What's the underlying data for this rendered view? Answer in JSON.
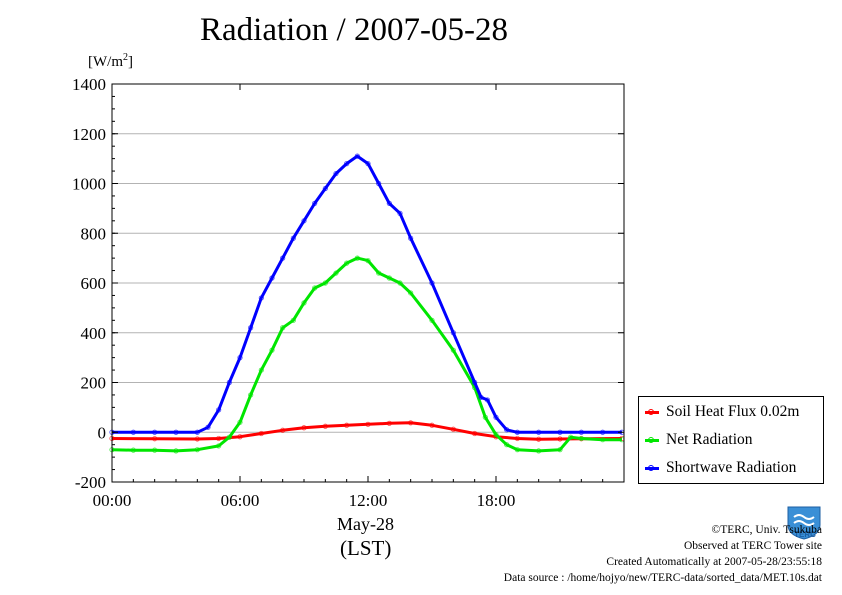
{
  "title": "Radiation / 2007-05-28",
  "unit_prefix": "[W/m",
  "unit_exp": "2",
  "unit_suffix": "]",
  "xlabel_date": "May-28",
  "xlabel_tz": "(LST)",
  "credits": [
    "©TERC, Univ. Tsukuba",
    "Observed at TERC Tower site",
    "Created Automatically at 2007-05-28/23:55:18",
    "Data source : /home/hojyo/new/TERC-data/sorted_data/MET.10s.dat"
  ],
  "logo_text": "TERC",
  "colors": {
    "soil": "#ff0000",
    "net": "#00e600",
    "shortwave": "#0000ff",
    "grid": "#b3b3b3"
  },
  "chart_data": {
    "type": "line",
    "title": "Radiation / 2007-05-28",
    "xlabel": "May-28 (LST)",
    "ylabel": "[W/m2]",
    "xlim": [
      0,
      24
    ],
    "ylim": [
      -200,
      1400
    ],
    "xticks": [
      0,
      6,
      12,
      18
    ],
    "xtick_labels": [
      "00:00",
      "06:00",
      "12:00",
      "18:00"
    ],
    "yticks": [
      -200,
      0,
      200,
      400,
      600,
      800,
      1000,
      1200,
      1400
    ],
    "grid": true,
    "legend_position": "lower-right-outside",
    "series": [
      {
        "name": "Soil Heat Flux 0.02m",
        "color": "#ff0000",
        "x": [
          0,
          2,
          4,
          5,
          6,
          7,
          8,
          9,
          10,
          11,
          12,
          13,
          14,
          15,
          16,
          17,
          18,
          19,
          20,
          21,
          22,
          23.9
        ],
        "y": [
          -25,
          -26,
          -27,
          -25,
          -18,
          -5,
          8,
          18,
          24,
          28,
          32,
          36,
          38,
          28,
          12,
          -5,
          -18,
          -25,
          -28,
          -27,
          -26,
          -25
        ]
      },
      {
        "name": "Net Radiation",
        "color": "#00e600",
        "x": [
          0,
          1,
          2,
          3,
          4,
          5,
          5.5,
          6,
          6.5,
          7,
          7.5,
          8,
          8.5,
          9,
          9.5,
          10,
          10.5,
          11,
          11.5,
          12,
          12.5,
          13,
          13.5,
          14,
          15,
          16,
          17,
          17.5,
          18,
          18.5,
          19,
          20,
          21,
          21.5,
          22,
          23,
          23.9
        ],
        "y": [
          -70,
          -72,
          -72,
          -75,
          -70,
          -55,
          -20,
          40,
          150,
          250,
          330,
          420,
          450,
          520,
          580,
          600,
          640,
          680,
          700,
          690,
          640,
          620,
          600,
          560,
          450,
          330,
          180,
          60,
          -10,
          -50,
          -70,
          -75,
          -70,
          -20,
          -25,
          -30,
          -30
        ]
      },
      {
        "name": "Shortwave Radiation",
        "color": "#0000ff",
        "x": [
          0,
          1,
          2,
          3,
          4,
          4.5,
          5,
          5.5,
          6,
          6.5,
          7,
          7.5,
          8,
          8.5,
          9,
          9.5,
          10,
          10.5,
          11,
          11.5,
          12,
          12.5,
          13,
          13.5,
          14,
          15,
          16,
          17,
          17.3,
          17.6,
          18,
          18.5,
          19,
          20,
          21,
          22,
          23,
          23.9
        ],
        "y": [
          0,
          0,
          0,
          0,
          0,
          20,
          90,
          200,
          300,
          420,
          540,
          620,
          700,
          780,
          850,
          920,
          980,
          1040,
          1080,
          1110,
          1080,
          1000,
          920,
          880,
          780,
          600,
          400,
          200,
          140,
          130,
          60,
          10,
          0,
          0,
          0,
          0,
          0,
          0
        ]
      }
    ]
  }
}
